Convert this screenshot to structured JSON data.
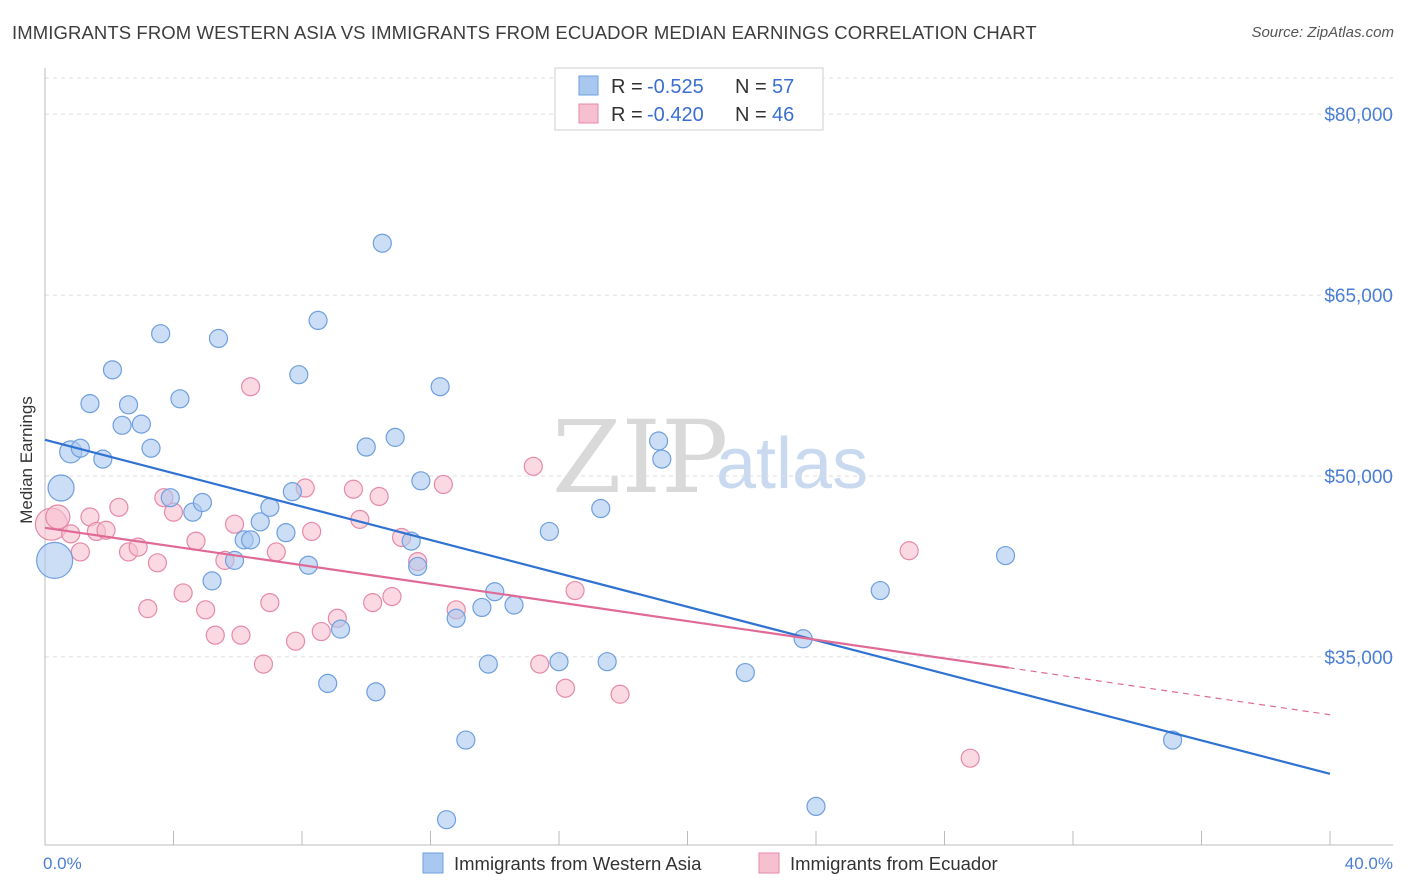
{
  "title": "IMMIGRANTS FROM WESTERN ASIA VS IMMIGRANTS FROM ECUADOR MEDIAN EARNINGS CORRELATION CHART",
  "source": "Source: ZipAtlas.com",
  "watermark": {
    "zip": "ZIP",
    "atlas": "atlas"
  },
  "colors": {
    "blue_fill": "#a9c8f0",
    "blue_stroke": "#6f9fde",
    "blue_line": "#2f72d1",
    "pink_fill": "#f6c0d0",
    "pink_stroke": "#e58aa8",
    "pink_line": "#e06a96",
    "tick_text": "#4a7ed4",
    "grid": "#dddddd"
  },
  "legend": {
    "rows": [
      {
        "r_label": "R =",
        "r_value": "-0.525",
        "n_label": "N =",
        "n_value": "57"
      },
      {
        "r_label": "R =",
        "r_value": "-0.420",
        "n_label": "N =",
        "n_value": "46"
      }
    ]
  },
  "chart_data": {
    "type": "scatter",
    "title": "IMMIGRANTS FROM WESTERN ASIA VS IMMIGRANTS FROM ECUADOR MEDIAN EARNINGS CORRELATION CHART",
    "xlabel": "",
    "ylabel": "Median Earnings",
    "xlim": [
      0,
      40
    ],
    "ylim": [
      19400,
      83000
    ],
    "x_tick_labels": [
      "0.0%",
      "40.0%"
    ],
    "y_ticks": [
      {
        "value": 35000,
        "label": "$35,000"
      },
      {
        "value": 50000,
        "label": "$50,000"
      },
      {
        "value": 65000,
        "label": "$65,000"
      },
      {
        "value": 80000,
        "label": "$80,000"
      }
    ],
    "series": [
      {
        "name": "Immigrants from Western Asia",
        "color": "blue",
        "points": [
          [
            0.3,
            43000
          ],
          [
            0.5,
            49000
          ],
          [
            0.8,
            52000
          ],
          [
            1.1,
            52300
          ],
          [
            1.4,
            56000
          ],
          [
            1.8,
            51400
          ],
          [
            2.1,
            58800
          ],
          [
            2.4,
            54200
          ],
          [
            2.6,
            55900
          ],
          [
            3.0,
            54300
          ],
          [
            3.3,
            52300
          ],
          [
            3.6,
            61800
          ],
          [
            3.9,
            48200
          ],
          [
            4.2,
            56400
          ],
          [
            4.6,
            47000
          ],
          [
            4.9,
            47800
          ],
          [
            5.2,
            41300
          ],
          [
            5.4,
            61400
          ],
          [
            5.9,
            43000
          ],
          [
            6.2,
            44700
          ],
          [
            6.4,
            44700
          ],
          [
            6.7,
            46200
          ],
          [
            7.0,
            47400
          ],
          [
            7.5,
            45300
          ],
          [
            7.7,
            48700
          ],
          [
            7.9,
            58400
          ],
          [
            8.2,
            42600
          ],
          [
            8.5,
            62900
          ],
          [
            8.8,
            32800
          ],
          [
            9.2,
            37300
          ],
          [
            10.0,
            52400
          ],
          [
            10.3,
            32100
          ],
          [
            10.5,
            69300
          ],
          [
            10.9,
            53200
          ],
          [
            11.4,
            44600
          ],
          [
            11.6,
            42500
          ],
          [
            11.7,
            49600
          ],
          [
            12.3,
            57400
          ],
          [
            12.5,
            21500
          ],
          [
            12.8,
            38200
          ],
          [
            13.1,
            28100
          ],
          [
            13.6,
            39100
          ],
          [
            13.8,
            34400
          ],
          [
            14.0,
            40400
          ],
          [
            14.6,
            39300
          ],
          [
            15.7,
            45400
          ],
          [
            16.0,
            34600
          ],
          [
            17.3,
            47300
          ],
          [
            17.5,
            34600
          ],
          [
            19.1,
            52900
          ],
          [
            19.2,
            51400
          ],
          [
            21.8,
            33700
          ],
          [
            23.6,
            36500
          ],
          [
            24.0,
            22600
          ],
          [
            26.0,
            40500
          ],
          [
            29.9,
            43400
          ],
          [
            35.1,
            28100
          ]
        ],
        "trendline": {
          "x_start": 0,
          "y_start": 53000,
          "x_end": 40,
          "y_end": 25300
        }
      },
      {
        "name": "Immigrants from Ecuador",
        "color": "pink",
        "points": [
          [
            0.2,
            46000
          ],
          [
            0.4,
            46600
          ],
          [
            0.8,
            45200
          ],
          [
            1.1,
            43700
          ],
          [
            1.4,
            46600
          ],
          [
            1.6,
            45400
          ],
          [
            1.9,
            45500
          ],
          [
            2.3,
            47400
          ],
          [
            2.6,
            43700
          ],
          [
            2.9,
            44100
          ],
          [
            3.2,
            39000
          ],
          [
            3.5,
            42800
          ],
          [
            3.7,
            48200
          ],
          [
            4.0,
            47000
          ],
          [
            4.3,
            40300
          ],
          [
            4.7,
            44600
          ],
          [
            5.0,
            38900
          ],
          [
            5.3,
            36800
          ],
          [
            5.6,
            43000
          ],
          [
            5.9,
            46000
          ],
          [
            6.1,
            36800
          ],
          [
            6.4,
            57400
          ],
          [
            6.8,
            34400
          ],
          [
            7.0,
            39500
          ],
          [
            7.2,
            43700
          ],
          [
            7.8,
            36300
          ],
          [
            8.1,
            49000
          ],
          [
            8.3,
            45400
          ],
          [
            8.6,
            37100
          ],
          [
            9.1,
            38200
          ],
          [
            9.6,
            48900
          ],
          [
            9.8,
            46400
          ],
          [
            10.2,
            39500
          ],
          [
            10.4,
            48300
          ],
          [
            10.8,
            40000
          ],
          [
            11.1,
            44900
          ],
          [
            11.6,
            42900
          ],
          [
            12.4,
            49300
          ],
          [
            12.8,
            38900
          ],
          [
            15.2,
            50800
          ],
          [
            15.4,
            34400
          ],
          [
            16.2,
            32400
          ],
          [
            16.5,
            40500
          ],
          [
            17.9,
            31900
          ],
          [
            26.9,
            43800
          ],
          [
            28.8,
            26600
          ]
        ],
        "trendline": {
          "x_start": 0,
          "y_start": 45700,
          "x_end": 30,
          "y_end": 34100,
          "dashed_to": {
            "x": 40,
            "y": 30200
          }
        }
      }
    ]
  },
  "bottom_legend": {
    "blue_label": "Immigrants from Western Asia",
    "pink_label": "Immigrants from Ecuador"
  }
}
